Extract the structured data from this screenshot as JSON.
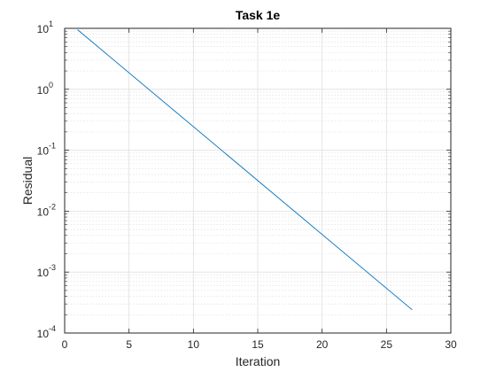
{
  "chart_data": {
    "type": "line",
    "title": "Task 1e",
    "xlabel": "Iteration",
    "ylabel": "Residual",
    "xlim": [
      0,
      30
    ],
    "ylim": [
      0.0001,
      10
    ],
    "yscale": "log",
    "grid": true,
    "minor_grid": true,
    "legend": "none",
    "x_ticks": [
      0,
      5,
      10,
      15,
      20,
      25,
      30
    ],
    "x_tick_labels": [
      "0",
      "5",
      "10",
      "15",
      "20",
      "25",
      "30"
    ],
    "y_ticks": [
      {
        "value": 0.0001,
        "base": "10",
        "exponent": "-4"
      },
      {
        "value": 0.001,
        "base": "10",
        "exponent": "-3"
      },
      {
        "value": 0.01,
        "base": "10",
        "exponent": "-2"
      },
      {
        "value": 0.1,
        "base": "10",
        "exponent": "-1"
      },
      {
        "value": 1,
        "base": "10",
        "exponent": "0"
      },
      {
        "value": 10,
        "base": "10",
        "exponent": "1"
      }
    ],
    "series": [
      {
        "color": "#0072bd",
        "x": [
          1,
          27
        ],
        "y": [
          9.5,
          0.00024
        ]
      }
    ]
  }
}
